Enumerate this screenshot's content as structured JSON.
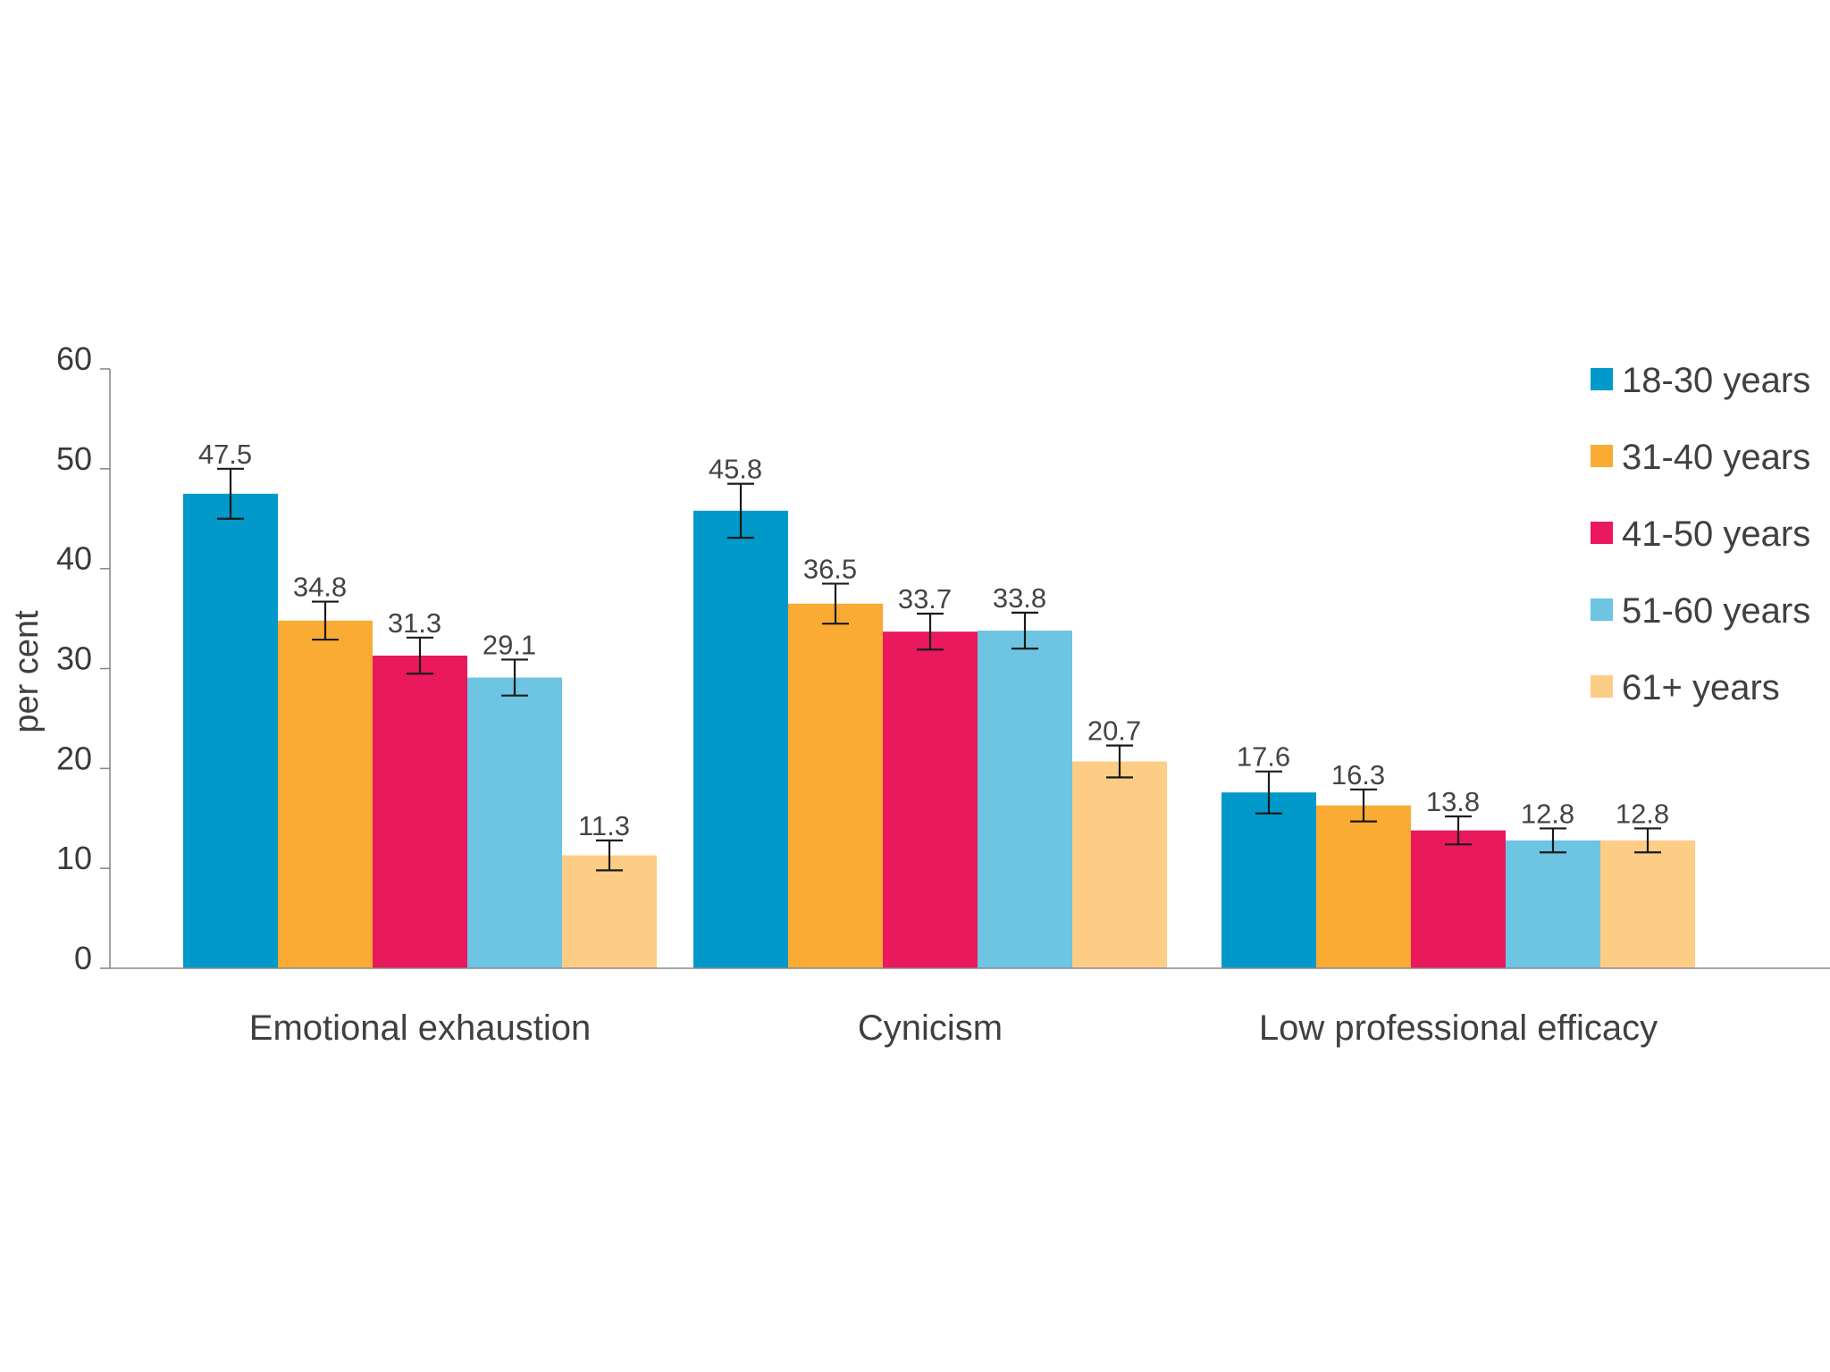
{
  "chart_data": {
    "type": "bar",
    "title": "",
    "xlabel": "",
    "ylabel": "per cent",
    "ylim": [
      0,
      60
    ],
    "yticks": [
      "0",
      "10",
      "20",
      "30",
      "40",
      "50",
      "60"
    ],
    "grid": false,
    "legend_position": "top-right",
    "categories": [
      "Emotional exhaustion",
      "Cynicism",
      "Low professional efficacy"
    ],
    "series": [
      {
        "name": "18-30 years",
        "color": "#0099c9",
        "values": [
          47.5,
          45.8,
          17.6
        ],
        "labels": [
          "47.5",
          "45.8",
          "17.6"
        ],
        "error": [
          2.5,
          2.7,
          2.1
        ]
      },
      {
        "name": "31-40 years",
        "color": "#f9ab34",
        "values": [
          34.8,
          36.5,
          16.3
        ],
        "labels": [
          "34.8",
          "36.5",
          "16.3"
        ],
        "error": [
          1.9,
          2.0,
          1.6
        ]
      },
      {
        "name": "41-50 years",
        "color": "#ea185c",
        "values": [
          31.3,
          33.7,
          13.8
        ],
        "labels": [
          "31.3",
          "33.7",
          "13.8"
        ],
        "error": [
          1.8,
          1.8,
          1.4
        ]
      },
      {
        "name": "51-60 years",
        "color": "#6dc4e3",
        "values": [
          29.1,
          33.8,
          12.8
        ],
        "labels": [
          "29.1",
          "33.8",
          "12.8"
        ],
        "error": [
          1.8,
          1.8,
          1.2
        ]
      },
      {
        "name": "61+ years",
        "color": "#fdcd86",
        "values": [
          11.3,
          20.7,
          12.8
        ],
        "labels": [
          "11.3",
          "20.7",
          "12.8"
        ],
        "error": [
          1.5,
          1.6,
          1.2
        ]
      }
    ]
  }
}
